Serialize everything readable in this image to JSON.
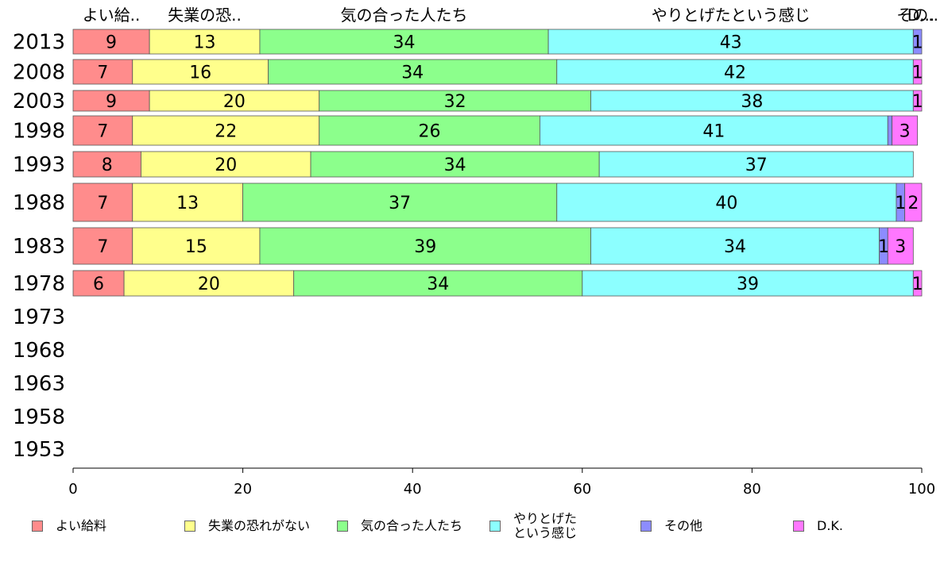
{
  "chart_data": {
    "type": "bar",
    "orientation": "horizontal",
    "stacked": true,
    "categories": [
      "2013",
      "2008",
      "2003",
      "1998",
      "1993",
      "1988",
      "1983",
      "1978",
      "1973",
      "1968",
      "1963",
      "1958",
      "1953"
    ],
    "series": [
      {
        "name": "よい給料",
        "short": "よい給..",
        "color": "#ff8c8c",
        "values": [
          9,
          7,
          9,
          7,
          8,
          7,
          7,
          6,
          null,
          null,
          null,
          null,
          null
        ]
      },
      {
        "name": "失業の恐れがない",
        "short": "失業の恐..",
        "color": "#ffff8c",
        "values": [
          13,
          16,
          20,
          22,
          20,
          13,
          15,
          20,
          null,
          null,
          null,
          null,
          null
        ]
      },
      {
        "name": "気の合った人たち",
        "short": "気の合った人たち",
        "color": "#8cff8c",
        "values": [
          34,
          34,
          32,
          26,
          34,
          37,
          39,
          34,
          null,
          null,
          null,
          null,
          null
        ]
      },
      {
        "name": "やりとげた\nという感じ",
        "short": "やりとげたという感じ",
        "color": "#8cffff",
        "values": [
          43,
          42,
          38,
          41,
          37,
          40,
          34,
          39,
          null,
          null,
          null,
          null,
          null
        ]
      },
      {
        "name": "その他",
        "short": "その..",
        "color": "#8c8cff",
        "values": [
          1,
          0,
          0,
          0.5,
          0,
          1,
          1,
          0,
          null,
          null,
          null,
          null,
          null
        ]
      },
      {
        "name": "D.K.",
        "short": "D...",
        "color": "#ff77ff",
        "values": [
          0,
          1,
          1,
          3,
          0,
          2,
          3,
          1,
          null,
          null,
          null,
          null,
          null
        ]
      }
    ],
    "data_labels": [
      [
        "9",
        "13",
        "34",
        "43",
        "1",
        ""
      ],
      [
        "7",
        "16",
        "34",
        "42",
        "",
        "1"
      ],
      [
        "9",
        "20",
        "32",
        "38",
        "",
        "1"
      ],
      [
        "7",
        "22",
        "26",
        "41",
        "",
        "3"
      ],
      [
        "8",
        "20",
        "34",
        "37",
        "",
        ""
      ],
      [
        "7",
        "13",
        "37",
        "40",
        "1",
        "2"
      ],
      [
        "7",
        "15",
        "39",
        "34",
        "1",
        "3"
      ],
      [
        "6",
        "20",
        "34",
        "39",
        "",
        "1"
      ]
    ],
    "xlim": [
      0,
      100
    ],
    "xticks": [
      "0",
      "20",
      "40",
      "60",
      "80",
      "100"
    ],
    "grid": false,
    "legend_position": "bottom"
  }
}
